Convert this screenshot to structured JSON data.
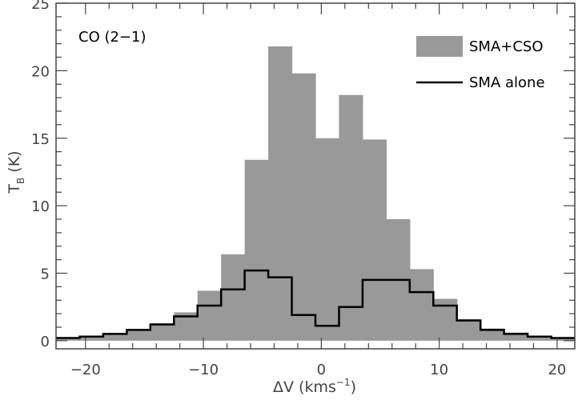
{
  "chart_data": {
    "type": "bar",
    "annotation": "CO (2−1)",
    "xlabel_main": "ΔV (kms",
    "xlabel_sup": "−1",
    "xlabel_close": ")",
    "ylabel_main": "T",
    "ylabel_sub": "B",
    "ylabel_rest": " (K)",
    "xlim": [
      -22.5,
      21.5
    ],
    "ylim": [
      -0.6,
      25
    ],
    "x_ticks": [
      -20,
      -10,
      0,
      10,
      20
    ],
    "y_ticks": [
      0,
      5,
      10,
      15,
      20,
      25
    ],
    "x_tick_labels": [
      "−20",
      "−10",
      "0",
      "10",
      "20"
    ],
    "y_tick_labels": [
      "0",
      "5",
      "10",
      "15",
      "20",
      "25"
    ],
    "grid": false,
    "legend_position": "top-right",
    "bin_edges": [
      -22.5,
      -20.5,
      -18.5,
      -16.5,
      -14.5,
      -12.5,
      -10.5,
      -8.5,
      -6.5,
      -4.5,
      -2.5,
      -0.5,
      1.5,
      3.5,
      5.5,
      7.5,
      9.5,
      11.5,
      13.5,
      15.5,
      17.5,
      19.5,
      21.5
    ],
    "series": [
      {
        "name": "SMA+CSO",
        "style": "filled-histogram",
        "color": "#999999",
        "values": [
          0.2,
          0.3,
          0.5,
          0.8,
          1.3,
          2.1,
          3.7,
          6.4,
          13.4,
          21.8,
          19.8,
          15.0,
          18.2,
          14.9,
          9.0,
          5.3,
          3.1,
          1.6,
          0.9,
          0.6,
          0.3,
          0.2
        ]
      },
      {
        "name": "SMA alone",
        "style": "step-line",
        "color": "#000000",
        "values": [
          0.2,
          0.3,
          0.5,
          0.8,
          1.2,
          1.8,
          2.6,
          3.8,
          5.2,
          4.7,
          1.9,
          1.1,
          2.5,
          4.5,
          4.5,
          3.6,
          2.6,
          1.5,
          0.8,
          0.5,
          0.3,
          0.2
        ]
      }
    ]
  }
}
